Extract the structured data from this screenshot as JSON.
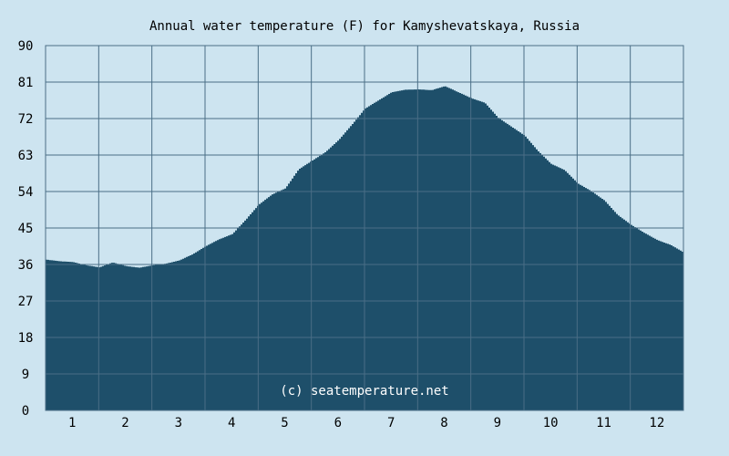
{
  "chart_data": {
    "type": "area",
    "title": "Annual water temperature (F) for Kamyshevatskaya, Russia",
    "xlabel": "",
    "ylabel": "",
    "x_unit": "month",
    "xlim": [
      0.5,
      12.5
    ],
    "ylim": [
      0,
      90
    ],
    "y_ticks": [
      "0",
      "9",
      "18",
      "27",
      "36",
      "45",
      "54",
      "63",
      "72",
      "81",
      "90"
    ],
    "x_ticks": [
      "1",
      "2",
      "3",
      "4",
      "5",
      "6",
      "7",
      "8",
      "9",
      "10",
      "11",
      "12"
    ],
    "grid": true,
    "watermark": "(c) seatemperature.net",
    "colors": {
      "background": "#cde4f0",
      "fill": "#1e4f6a",
      "grid": "#4a6e86"
    },
    "series": [
      {
        "x": [
          0.5,
          0.75,
          1.0,
          1.25,
          1.5,
          1.75,
          2.0,
          2.25,
          2.5,
          2.75,
          3.0,
          3.25,
          3.5,
          3.75,
          4.0,
          4.25,
          4.5,
          4.75,
          5.0,
          5.25,
          5.5,
          5.75,
          6.0,
          6.25,
          6.5,
          6.75,
          7.0,
          7.25,
          7.5,
          7.75,
          8.0,
          8.25,
          8.5,
          8.75,
          9.0,
          9.25,
          9.5,
          9.75,
          10.0,
          10.25,
          10.5,
          10.75,
          11.0,
          11.25,
          11.5,
          11.75,
          12.0,
          12.25,
          12.5
        ],
        "values": [
          37.2,
          36.8,
          36.6,
          35.8,
          35.3,
          36.5,
          35.6,
          35.2,
          35.8,
          36.2,
          37.0,
          38.5,
          40.5,
          42.2,
          43.5,
          47.0,
          50.8,
          53.3,
          54.8,
          59.5,
          61.6,
          63.7,
          66.7,
          70.5,
          74.5,
          76.5,
          78.5,
          79.1,
          79.2,
          79.0,
          80.0,
          78.5,
          77.0,
          75.9,
          72.2,
          70.0,
          67.8,
          64.0,
          60.8,
          59.3,
          56.0,
          54.1,
          51.8,
          48.2,
          45.8,
          43.8,
          42.0,
          40.8,
          38.9
        ]
      }
    ]
  }
}
